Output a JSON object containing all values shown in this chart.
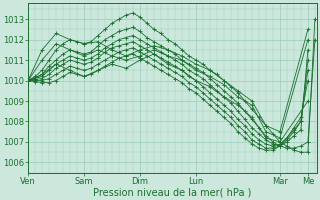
{
  "xlabel": "Pression niveau de la mer( hPa )",
  "bg_color": "#cce8dd",
  "grid_color": "#99ccbb",
  "line_color": "#1a6e2e",
  "ylim": [
    1005.5,
    1013.8
  ],
  "yticks": [
    1006,
    1007,
    1008,
    1009,
    1010,
    1011,
    1012,
    1013
  ],
  "day_labels": [
    "Ven",
    "Sam",
    "Dim",
    "Lun",
    "Mar",
    "Me"
  ],
  "day_positions": [
    0,
    24,
    48,
    72,
    108,
    120
  ],
  "total_hours": 124,
  "series": [
    {
      "x": [
        0,
        3,
        6,
        9,
        12,
        15,
        18,
        21,
        24,
        27,
        30,
        33,
        36,
        39,
        42,
        45,
        48,
        51,
        54,
        57,
        60,
        63,
        66,
        69,
        72,
        75,
        78,
        81,
        84,
        87,
        90,
        93,
        96,
        99,
        102,
        105,
        108,
        111,
        114,
        117,
        120,
        123
      ],
      "y": [
        1010.0,
        1010.2,
        1010.5,
        1011.0,
        1011.5,
        1011.8,
        1012.0,
        1011.9,
        1011.8,
        1011.9,
        1012.2,
        1012.5,
        1012.8,
        1013.0,
        1013.2,
        1013.3,
        1013.1,
        1012.8,
        1012.5,
        1012.3,
        1012.0,
        1011.8,
        1011.5,
        1011.2,
        1011.0,
        1010.8,
        1010.5,
        1010.3,
        1010.0,
        1009.7,
        1009.4,
        1009.0,
        1008.6,
        1008.2,
        1007.8,
        1007.4,
        1007.0,
        1006.8,
        1006.6,
        1006.5,
        1006.5,
        1013.0
      ]
    },
    {
      "x": [
        0,
        3,
        6,
        9,
        12,
        15,
        18,
        21,
        24,
        27,
        30,
        33,
        36,
        39,
        42,
        45,
        48,
        51,
        54,
        57,
        60,
        63,
        66,
        69,
        72,
        75,
        78,
        81,
        84,
        87,
        90,
        93,
        96,
        99,
        102,
        105,
        108,
        111,
        114,
        117,
        120,
        123
      ],
      "y": [
        1010.0,
        1010.1,
        1010.3,
        1010.7,
        1011.0,
        1011.3,
        1011.5,
        1011.4,
        1011.3,
        1011.4,
        1011.7,
        1012.0,
        1012.2,
        1012.4,
        1012.5,
        1012.6,
        1012.4,
        1012.1,
        1011.9,
        1011.7,
        1011.5,
        1011.3,
        1011.0,
        1010.8,
        1010.6,
        1010.4,
        1010.1,
        1009.8,
        1009.5,
        1009.2,
        1008.9,
        1008.5,
        1008.1,
        1007.7,
        1007.3,
        1007.0,
        1006.8,
        1006.7,
        1006.7,
        1006.8,
        1007.0,
        1012.0
      ]
    },
    {
      "x": [
        0,
        3,
        6,
        9,
        12,
        15,
        18,
        21,
        24,
        27,
        30,
        33,
        36,
        39,
        42,
        45,
        48,
        51,
        54,
        57,
        60,
        63,
        66,
        69,
        72,
        75,
        78,
        81,
        84,
        87,
        90,
        93,
        96,
        99,
        102,
        105,
        108,
        111,
        114,
        117,
        120
      ],
      "y": [
        1010.0,
        1010.1,
        1010.2,
        1010.5,
        1010.8,
        1011.0,
        1011.2,
        1011.1,
        1011.0,
        1011.1,
        1011.3,
        1011.6,
        1011.8,
        1012.0,
        1012.1,
        1012.2,
        1012.0,
        1011.8,
        1011.6,
        1011.4,
        1011.2,
        1011.0,
        1010.8,
        1010.5,
        1010.3,
        1010.1,
        1009.8,
        1009.5,
        1009.2,
        1008.9,
        1008.5,
        1008.1,
        1007.7,
        1007.4,
        1007.1,
        1006.9,
        1006.8,
        1007.0,
        1007.3,
        1007.6,
        1011.5
      ]
    },
    {
      "x": [
        0,
        3,
        6,
        9,
        12,
        15,
        18,
        21,
        24,
        27,
        30,
        33,
        36,
        39,
        42,
        45,
        48,
        51,
        54,
        57,
        60,
        63,
        66,
        69,
        72,
        75,
        78,
        81,
        84,
        87,
        90,
        93,
        96,
        99,
        102,
        105,
        108,
        111,
        114,
        117,
        120
      ],
      "y": [
        1010.0,
        1010.05,
        1010.1,
        1010.3,
        1010.6,
        1010.8,
        1011.0,
        1010.9,
        1010.8,
        1010.9,
        1011.1,
        1011.4,
        1011.6,
        1011.7,
        1011.8,
        1011.9,
        1011.7,
        1011.5,
        1011.3,
        1011.1,
        1010.9,
        1010.7,
        1010.5,
        1010.2,
        1010.0,
        1009.7,
        1009.4,
        1009.1,
        1008.8,
        1008.5,
        1008.1,
        1007.8,
        1007.4,
        1007.1,
        1006.9,
        1006.8,
        1006.9,
        1007.2,
        1007.6,
        1008.0,
        1011.0
      ]
    },
    {
      "x": [
        0,
        3,
        6,
        9,
        12,
        15,
        18,
        21,
        24,
        27,
        30,
        33,
        36,
        39,
        42,
        45,
        48,
        51,
        54,
        57,
        60,
        63,
        66,
        69,
        72,
        75,
        78,
        81,
        84,
        87,
        90,
        93,
        96,
        99,
        102,
        105,
        108,
        111,
        114,
        117,
        120
      ],
      "y": [
        1010.0,
        1010.0,
        1010.0,
        1010.1,
        1010.3,
        1010.5,
        1010.7,
        1010.6,
        1010.5,
        1010.6,
        1010.8,
        1011.0,
        1011.2,
        1011.4,
        1011.5,
        1011.6,
        1011.4,
        1011.2,
        1011.0,
        1010.8,
        1010.6,
        1010.4,
        1010.2,
        1009.9,
        1009.7,
        1009.4,
        1009.1,
        1008.8,
        1008.5,
        1008.2,
        1007.8,
        1007.5,
        1007.1,
        1006.9,
        1006.7,
        1006.7,
        1006.8,
        1007.1,
        1007.5,
        1008.0,
        1010.5
      ]
    },
    {
      "x": [
        0,
        3,
        6,
        9,
        12,
        15,
        18,
        21,
        24,
        27,
        30,
        33,
        36,
        39,
        42,
        45,
        48,
        51,
        54,
        57,
        60,
        63,
        66,
        69,
        72,
        75,
        78,
        81,
        84,
        87,
        90,
        93,
        96,
        99,
        102,
        105,
        108,
        111,
        114,
        117,
        120
      ],
      "y": [
        1010.0,
        1009.95,
        1009.9,
        1009.9,
        1010.0,
        1010.2,
        1010.4,
        1010.3,
        1010.2,
        1010.3,
        1010.5,
        1010.7,
        1010.9,
        1011.1,
        1011.2,
        1011.3,
        1011.1,
        1010.9,
        1010.7,
        1010.5,
        1010.3,
        1010.1,
        1009.9,
        1009.6,
        1009.4,
        1009.1,
        1008.8,
        1008.5,
        1008.2,
        1007.9,
        1007.5,
        1007.2,
        1006.9,
        1006.7,
        1006.6,
        1006.6,
        1006.8,
        1007.2,
        1007.7,
        1008.2,
        1010.0
      ]
    },
    {
      "x": [
        0,
        6,
        12,
        18,
        24,
        30,
        36,
        42,
        48,
        54,
        60,
        66,
        72,
        78,
        84,
        90,
        96,
        102,
        108,
        120
      ],
      "y": [
        1010.0,
        1011.5,
        1012.3,
        1012.0,
        1011.8,
        1011.9,
        1011.5,
        1011.2,
        1011.5,
        1011.7,
        1011.5,
        1011.2,
        1010.8,
        1010.5,
        1010.0,
        1009.5,
        1009.0,
        1007.8,
        1007.5,
        1012.5
      ]
    },
    {
      "x": [
        0,
        6,
        12,
        18,
        24,
        30,
        36,
        42,
        48,
        54,
        60,
        66,
        72,
        78,
        84,
        90,
        96,
        102,
        108,
        120
      ],
      "y": [
        1010.0,
        1011.0,
        1011.8,
        1011.5,
        1011.2,
        1011.5,
        1011.2,
        1011.0,
        1011.2,
        1011.5,
        1011.2,
        1011.0,
        1010.5,
        1010.2,
        1009.8,
        1009.2,
        1008.8,
        1007.5,
        1007.2,
        1012.0
      ]
    },
    {
      "x": [
        0,
        6,
        12,
        18,
        24,
        30,
        36,
        42,
        48,
        54,
        60,
        66,
        72,
        78,
        84,
        90,
        96,
        102,
        108,
        120
      ],
      "y": [
        1010.0,
        1010.3,
        1010.8,
        1010.5,
        1010.2,
        1010.5,
        1010.8,
        1010.6,
        1011.0,
        1011.3,
        1010.8,
        1010.5,
        1010.0,
        1009.7,
        1009.2,
        1008.8,
        1008.2,
        1007.2,
        1007.0,
        1009.0
      ]
    }
  ]
}
